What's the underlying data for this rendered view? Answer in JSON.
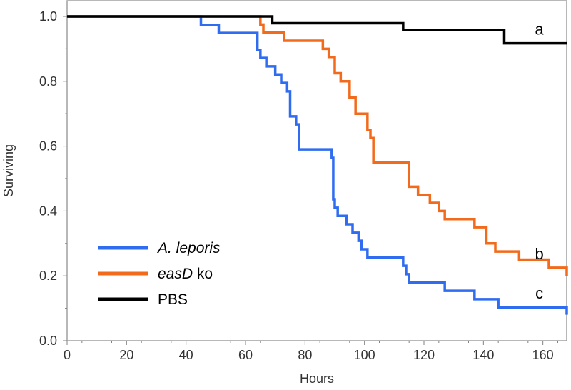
{
  "chart_data": {
    "type": "line",
    "step": true,
    "xlabel": "Hours",
    "ylabel": "Surviving",
    "xlim": [
      0,
      168
    ],
    "ylim": [
      0.0,
      1.0
    ],
    "x_ticks": [
      0,
      20,
      40,
      60,
      80,
      100,
      120,
      140,
      160
    ],
    "x_tick_labels": [
      "0",
      "20",
      "40",
      "60",
      "80",
      "100",
      "120",
      "140",
      "160"
    ],
    "y_ticks": [
      0.0,
      0.2,
      0.4,
      0.6,
      0.8,
      1.0
    ],
    "y_tick_labels": [
      "0.0",
      "0.2",
      "0.4",
      "0.6",
      "0.8",
      "1.0"
    ],
    "legend_position": "bottom-left",
    "series": [
      {
        "name": "A. leporis",
        "label_parts": [
          {
            "text": "A. leporis",
            "italic": true
          }
        ],
        "color": "#2f6cf0",
        "annotation": "c",
        "points": [
          [
            0,
            1.0
          ],
          [
            45,
            0.974
          ],
          [
            51,
            0.949
          ],
          [
            64,
            0.897
          ],
          [
            65,
            0.872
          ],
          [
            67,
            0.846
          ],
          [
            70,
            0.821
          ],
          [
            72,
            0.795
          ],
          [
            74,
            0.769
          ],
          [
            75,
            0.692
          ],
          [
            77,
            0.667
          ],
          [
            78,
            0.59
          ],
          [
            89,
            0.564
          ],
          [
            89.5,
            0.436
          ],
          [
            90,
            0.41
          ],
          [
            91,
            0.385
          ],
          [
            94,
            0.359
          ],
          [
            96,
            0.333
          ],
          [
            98,
            0.308
          ],
          [
            99,
            0.282
          ],
          [
            101,
            0.256
          ],
          [
            113,
            0.231
          ],
          [
            114,
            0.205
          ],
          [
            115,
            0.179
          ],
          [
            127,
            0.154
          ],
          [
            137,
            0.128
          ],
          [
            145,
            0.103
          ],
          [
            167.5,
            0.103
          ],
          [
            168,
            0.08
          ]
        ]
      },
      {
        "name": "easD ko",
        "label_parts": [
          {
            "text": "easD",
            "italic": true
          },
          {
            "text": " ko",
            "italic": false
          }
        ],
        "color": "#f26a1b",
        "annotation": "b",
        "points": [
          [
            0,
            1.0
          ],
          [
            65,
            0.975
          ],
          [
            66,
            0.95
          ],
          [
            73,
            0.925
          ],
          [
            86,
            0.9
          ],
          [
            88,
            0.875
          ],
          [
            90,
            0.825
          ],
          [
            92,
            0.8
          ],
          [
            95,
            0.75
          ],
          [
            97,
            0.7
          ],
          [
            101,
            0.65
          ],
          [
            102,
            0.625
          ],
          [
            103,
            0.55
          ],
          [
            115,
            0.475
          ],
          [
            118,
            0.45
          ],
          [
            122,
            0.425
          ],
          [
            125,
            0.4
          ],
          [
            127,
            0.375
          ],
          [
            137,
            0.35
          ],
          [
            141,
            0.3
          ],
          [
            144,
            0.275
          ],
          [
            152,
            0.25
          ],
          [
            162,
            0.225
          ],
          [
            167.5,
            0.225
          ],
          [
            168,
            0.2
          ]
        ]
      },
      {
        "name": "PBS",
        "label_parts": [
          {
            "text": "PBS",
            "italic": false
          }
        ],
        "color": "#000000",
        "annotation": "a",
        "points": [
          [
            0,
            1.0
          ],
          [
            69,
            0.979
          ],
          [
            113,
            0.958
          ],
          [
            147,
            0.917
          ],
          [
            168,
            0.917
          ]
        ]
      }
    ]
  }
}
